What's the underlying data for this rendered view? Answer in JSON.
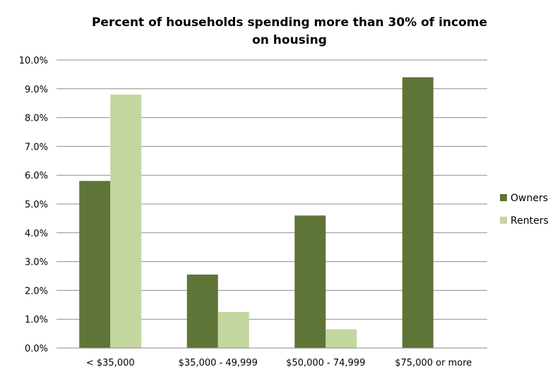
{
  "chart_data": {
    "type": "bar",
    "title_line1": "Percent of households spending more than 30% of income",
    "title_line2": "on housing",
    "xlabel": "",
    "ylabel": "",
    "categories": [
      "< $35,000",
      "$35,000 - 49,999",
      "$50,000 - 74,999",
      "$75,000 or more"
    ],
    "series": [
      {
        "name": "Owners",
        "color": "#5f7437",
        "values": [
          5.8,
          2.55,
          4.6,
          9.4
        ]
      },
      {
        "name": "Renters",
        "color": "#c4d6a0",
        "values": [
          8.8,
          1.25,
          0.65,
          0
        ]
      }
    ],
    "y_ticks": [
      "0.0%",
      "1.0%",
      "2.0%",
      "3.0%",
      "4.0%",
      "5.0%",
      "6.0%",
      "7.0%",
      "8.0%",
      "9.0%",
      "10.0%"
    ],
    "ylim": [
      0,
      10
    ],
    "grid": true,
    "legend_position": "right"
  }
}
